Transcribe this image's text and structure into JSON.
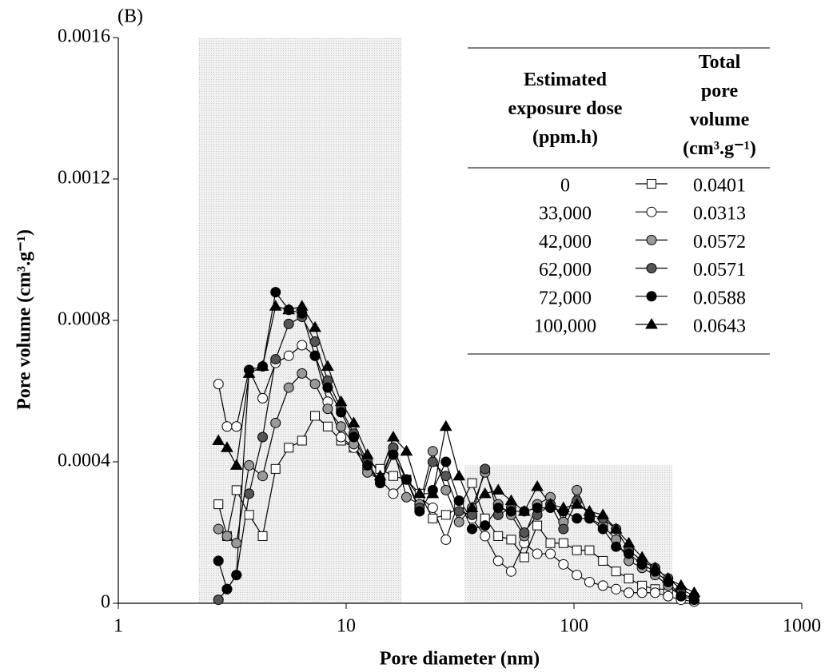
{
  "chart_data": {
    "type": "line",
    "panel_label": "(B)",
    "x_label": "Pore diameter (nm)",
    "y_label": "Pore volume (cm³.g⁻¹)",
    "log_x": true,
    "xlim": [
      1,
      1000
    ],
    "xticks": [
      1,
      10,
      100,
      1000
    ],
    "ylim": [
      0,
      0.0016
    ],
    "yticks": [
      0,
      0.0004,
      0.0008,
      0.0012,
      0.0016
    ],
    "shaded_ranges": [
      {
        "x": [
          2.25,
          17.5
        ],
        "y": [
          0,
          0.0016
        ]
      },
      {
        "x": [
          33,
          270
        ],
        "y": [
          0,
          0.00039
        ]
      }
    ],
    "legend_headers": [
      "Estimated exposure dose (ppm.h)",
      "Total pore volume (cm³.g⁻¹)"
    ],
    "x": [
      2.75,
      3.0,
      3.3,
      3.75,
      4.3,
      4.9,
      5.6,
      6.4,
      7.3,
      8.3,
      9.5,
      10.8,
      12.4,
      14.1,
      16.1,
      18.4,
      21.0,
      24.0,
      27.4,
      31.3,
      35.7,
      40.7,
      46.5,
      53.0,
      60.5,
      69.0,
      78.8,
      89.9,
      103,
      117,
      134,
      153,
      174,
      199,
      227,
      259,
      295,
      337
    ],
    "series": [
      {
        "name": "0",
        "total_pore_volume": 0.0401,
        "color": "#000000",
        "marker": "square",
        "marker_fill": "#ffffff",
        "values": [
          0.00028,
          0.00019,
          0.00032,
          0.00025,
          0.00019,
          0.00038,
          0.00044,
          0.00046,
          0.00053,
          0.0005,
          0.00046,
          0.00044,
          0.0004,
          0.00038,
          0.00036,
          0.00035,
          0.00031,
          0.00024,
          0.00025,
          0.00027,
          0.00034,
          0.00024,
          0.00019,
          0.00018,
          0.00013,
          0.00022,
          0.00017,
          0.00017,
          0.00015,
          0.00015,
          0.00012,
          9e-05,
          7e-05,
          5e-05,
          4e-05,
          4e-05,
          3e-05,
          1e-05
        ]
      },
      {
        "name": "33,000",
        "total_pore_volume": 0.0313,
        "color": "#000000",
        "marker": "circle",
        "marker_fill": "#ffffff",
        "values": [
          0.00062,
          0.0005,
          0.0005,
          0.00066,
          0.00058,
          0.00068,
          0.0007,
          0.00073,
          0.0007,
          0.00057,
          0.00047,
          0.00044,
          0.00038,
          0.00035,
          0.00031,
          0.00035,
          0.0003,
          0.00027,
          0.00018,
          0.00029,
          0.00024,
          0.00019,
          0.00012,
          9e-05,
          0.00017,
          0.00014,
          0.00014,
          0.00011,
          8e-05,
          6e-05,
          5e-05,
          4e-05,
          3e-05,
          3e-05,
          3e-05,
          2e-05,
          1e-05,
          5e-06
        ]
      },
      {
        "name": "42,000",
        "total_pore_volume": 0.0572,
        "color": "#000000",
        "marker": "circle",
        "marker_fill": "#999999",
        "values": [
          0.00021,
          0.00019,
          0.00017,
          0.00039,
          0.00036,
          0.00051,
          0.00061,
          0.00065,
          0.00062,
          0.00055,
          0.0005,
          0.00045,
          0.00037,
          0.00035,
          0.00044,
          0.0003,
          0.00028,
          0.00043,
          0.00032,
          0.00023,
          0.00027,
          0.00037,
          0.00028,
          0.00025,
          0.00019,
          0.00028,
          0.0003,
          0.00023,
          0.00032,
          0.00024,
          0.00022,
          0.00018,
          0.00012,
          0.0001,
          8e-05,
          5e-05,
          2e-05,
          1e-05
        ]
      },
      {
        "name": "62,000",
        "total_pore_volume": 0.0571,
        "color": "#000000",
        "marker": "circle",
        "marker_fill": "#555555",
        "values": [
          1e-05,
          4e-05,
          8e-05,
          0.00031,
          0.00047,
          0.00069,
          0.00079,
          0.00081,
          0.00074,
          0.00063,
          0.00055,
          0.00048,
          0.0004,
          0.00034,
          0.00044,
          0.00035,
          0.00027,
          0.0004,
          0.00036,
          0.00026,
          0.00025,
          0.00038,
          0.00025,
          0.00027,
          0.0002,
          0.00025,
          0.00028,
          0.00021,
          0.00029,
          0.00025,
          0.00024,
          0.00021,
          0.00015,
          0.00012,
          0.0001,
          7e-05,
          4e-05,
          2e-05
        ]
      },
      {
        "name": "72,000",
        "total_pore_volume": 0.0588,
        "color": "#000000",
        "marker": "circle",
        "marker_fill": "#000000",
        "values": [
          0.00012,
          4e-05,
          8e-05,
          0.00066,
          0.00067,
          0.00088,
          0.00083,
          0.00082,
          0.0007,
          0.00061,
          0.00054,
          0.00047,
          0.00039,
          0.00034,
          0.00042,
          0.00035,
          0.00026,
          0.00032,
          0.0004,
          0.00029,
          0.00021,
          0.00022,
          0.00027,
          0.00026,
          0.00026,
          0.00027,
          0.00027,
          0.00026,
          0.00024,
          0.00024,
          0.00021,
          0.00016,
          0.00014,
          0.00011,
          9e-05,
          6e-05,
          2e-05,
          1e-05
        ]
      },
      {
        "name": "100,000",
        "total_pore_volume": 0.0643,
        "color": "#000000",
        "marker": "triangle",
        "marker_fill": "#000000",
        "values": [
          0.00046,
          0.00044,
          0.00039,
          0.00065,
          0.00067,
          0.00084,
          0.00083,
          0.00084,
          0.00078,
          0.00067,
          0.00057,
          0.00051,
          0.00042,
          0.00036,
          0.00047,
          0.00043,
          0.00031,
          0.00031,
          0.0005,
          0.00036,
          0.00027,
          0.00031,
          0.00032,
          0.00029,
          0.00026,
          0.00033,
          0.00028,
          0.00027,
          0.00028,
          0.00026,
          0.00025,
          0.00021,
          0.00017,
          0.00013,
          0.0001,
          7e-05,
          5e-05,
          3e-05
        ]
      }
    ]
  }
}
